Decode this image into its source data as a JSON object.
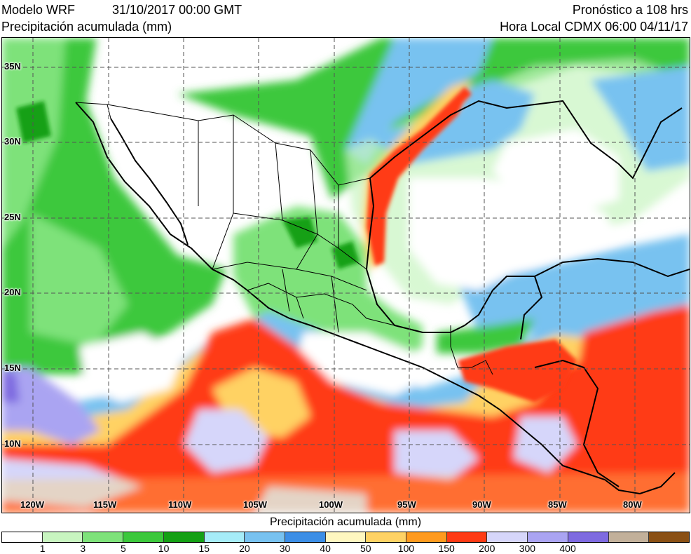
{
  "header": {
    "model": "Modelo WRF",
    "init": "31/10/2017 00:00 GMT",
    "variable": "Precipitación acumulada (mm)",
    "forecast": "Pronóstico a 108 hrs",
    "local_time": "Hora Local CDMX 06:00 04/11/17"
  },
  "map": {
    "lat_labels": [
      "35N",
      "30N",
      "25N",
      "20N",
      "15N",
      "10N"
    ],
    "lon_labels": [
      "120W",
      "115W",
      "110W",
      "105W",
      "100W",
      "95W",
      "90W",
      "85W",
      "80W"
    ],
    "gridlines": "dashed"
  },
  "colorbar": {
    "title": "Precipitación acumulada (mm)",
    "ticks": [
      "1",
      "3",
      "5",
      "10",
      "15",
      "20",
      "30",
      "40",
      "50",
      "100",
      "150",
      "200",
      "300",
      "400"
    ],
    "colors": [
      "#ffffff",
      "#c8f5c0",
      "#7ee27a",
      "#3cc83c",
      "#14a014",
      "#a6ecf8",
      "#78c2f0",
      "#3c8ee6",
      "#fff7c0",
      "#ffd264",
      "#ff9a1e",
      "#ff3a14",
      "#d6d6fa",
      "#aaa4f2",
      "#7e6ae0",
      "#c2b09a",
      "#8a5014"
    ]
  }
}
